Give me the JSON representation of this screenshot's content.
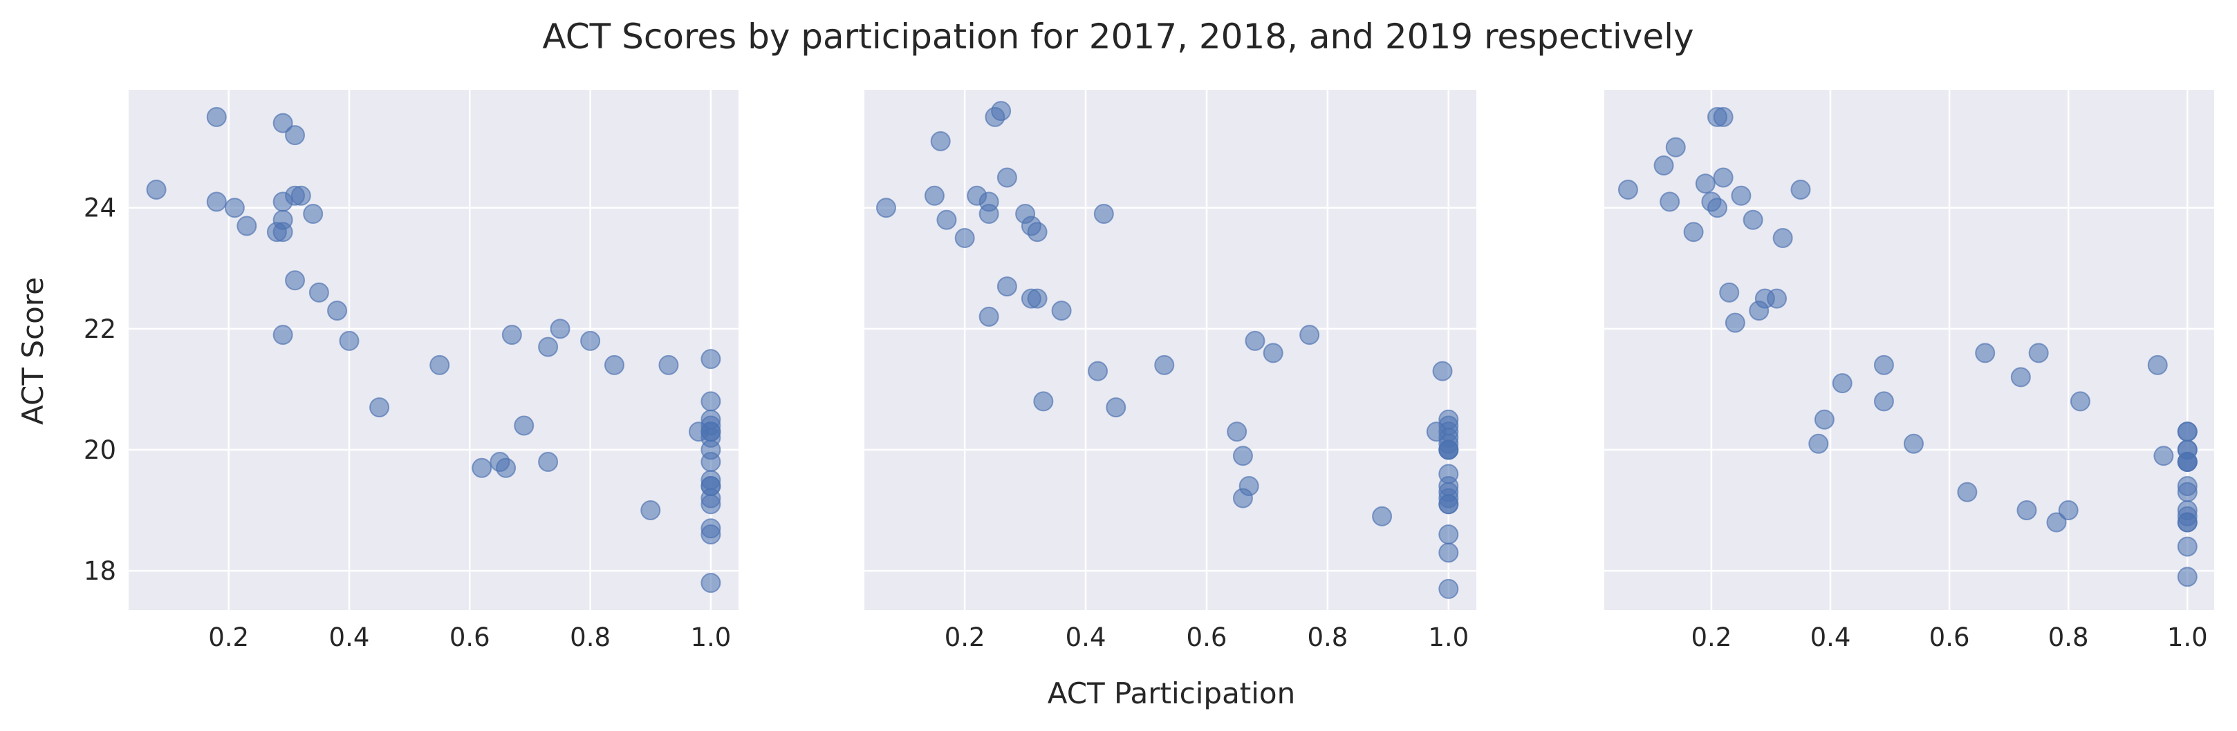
{
  "chart_data": {
    "type": "scatter",
    "title": "ACT Scores by participation for 2017, 2018, and 2019 respectively",
    "xlabel": "ACT Participation",
    "ylabel": "ACT Score",
    "marker_color": "#4c72b0",
    "background_color": "#eaeaf2",
    "grid": true,
    "sharey": true,
    "ylim": [
      17.35,
      25.95
    ],
    "yticks": [
      18,
      20,
      22,
      24
    ],
    "panels": [
      {
        "xlim": [
          0.034,
          1.046
        ],
        "xticks": [
          0.2,
          0.4,
          0.6,
          0.8,
          1.0
        ],
        "xticklabels": [
          "0.2",
          "0.4",
          "0.6",
          "0.8",
          "1.0"
        ],
        "points": [
          [
            0.08,
            24.3
          ],
          [
            0.18,
            25.5
          ],
          [
            0.18,
            24.1
          ],
          [
            0.21,
            24.0
          ],
          [
            0.23,
            23.7
          ],
          [
            0.28,
            23.6
          ],
          [
            0.29,
            25.4
          ],
          [
            0.29,
            24.1
          ],
          [
            0.29,
            23.8
          ],
          [
            0.29,
            23.6
          ],
          [
            0.29,
            21.9
          ],
          [
            0.31,
            25.2
          ],
          [
            0.31,
            24.2
          ],
          [
            0.32,
            24.2
          ],
          [
            0.34,
            23.9
          ],
          [
            0.31,
            22.8
          ],
          [
            0.35,
            22.6
          ],
          [
            0.38,
            22.3
          ],
          [
            0.4,
            21.8
          ],
          [
            0.45,
            20.7
          ],
          [
            0.55,
            21.4
          ],
          [
            0.62,
            19.7
          ],
          [
            0.65,
            19.8
          ],
          [
            0.66,
            19.7
          ],
          [
            0.67,
            21.9
          ],
          [
            0.69,
            20.4
          ],
          [
            0.73,
            21.7
          ],
          [
            0.73,
            19.8
          ],
          [
            0.75,
            22.0
          ],
          [
            0.8,
            21.8
          ],
          [
            0.84,
            21.4
          ],
          [
            0.9,
            19.0
          ],
          [
            0.93,
            21.4
          ],
          [
            0.98,
            20.3
          ],
          [
            1.0,
            21.5
          ],
          [
            1.0,
            20.8
          ],
          [
            1.0,
            20.5
          ],
          [
            1.0,
            20.4
          ],
          [
            1.0,
            20.3
          ],
          [
            1.0,
            20.2
          ],
          [
            1.0,
            20.0
          ],
          [
            1.0,
            19.8
          ],
          [
            1.0,
            19.5
          ],
          [
            1.0,
            19.4
          ],
          [
            1.0,
            19.4
          ],
          [
            1.0,
            19.2
          ],
          [
            1.0,
            19.1
          ],
          [
            1.0,
            18.7
          ],
          [
            1.0,
            18.6
          ],
          [
            1.0,
            17.8
          ],
          [
            1.0,
            20.3
          ]
        ]
      },
      {
        "xlim": [
          0.034,
          1.046
        ],
        "xticks": [
          0.2,
          0.4,
          0.6,
          0.8,
          1.0
        ],
        "xticklabels": [
          "0.2",
          "0.4",
          "0.6",
          "0.8",
          "1.0"
        ],
        "points": [
          [
            0.07,
            24.0
          ],
          [
            0.15,
            24.2
          ],
          [
            0.16,
            25.1
          ],
          [
            0.17,
            23.8
          ],
          [
            0.2,
            23.5
          ],
          [
            0.22,
            24.2
          ],
          [
            0.24,
            24.1
          ],
          [
            0.24,
            23.9
          ],
          [
            0.24,
            22.2
          ],
          [
            0.25,
            25.5
          ],
          [
            0.26,
            25.6
          ],
          [
            0.27,
            24.5
          ],
          [
            0.27,
            22.7
          ],
          [
            0.3,
            23.9
          ],
          [
            0.31,
            23.7
          ],
          [
            0.31,
            22.5
          ],
          [
            0.32,
            23.6
          ],
          [
            0.32,
            22.5
          ],
          [
            0.33,
            20.8
          ],
          [
            0.36,
            22.3
          ],
          [
            0.42,
            21.3
          ],
          [
            0.43,
            23.9
          ],
          [
            0.45,
            20.7
          ],
          [
            0.53,
            21.4
          ],
          [
            0.65,
            20.3
          ],
          [
            0.66,
            19.9
          ],
          [
            0.66,
            19.2
          ],
          [
            0.67,
            19.4
          ],
          [
            0.68,
            21.8
          ],
          [
            0.71,
            21.6
          ],
          [
            0.77,
            21.9
          ],
          [
            0.89,
            18.9
          ],
          [
            0.98,
            20.3
          ],
          [
            0.99,
            21.3
          ],
          [
            1.0,
            20.5
          ],
          [
            1.0,
            20.4
          ],
          [
            1.0,
            20.3
          ],
          [
            1.0,
            20.2
          ],
          [
            1.0,
            20.1
          ],
          [
            1.0,
            20.0
          ],
          [
            1.0,
            20.0
          ],
          [
            1.0,
            19.6
          ],
          [
            1.0,
            19.4
          ],
          [
            1.0,
            19.3
          ],
          [
            1.0,
            19.2
          ],
          [
            1.0,
            19.1
          ],
          [
            1.0,
            19.1
          ],
          [
            1.0,
            18.6
          ],
          [
            1.0,
            18.3
          ],
          [
            1.0,
            17.7
          ],
          [
            1.0,
            20.0
          ]
        ]
      },
      {
        "xlim": [
          0.02,
          1.045
        ],
        "xticks": [
          0.2,
          0.4,
          0.6,
          0.8,
          1.0
        ],
        "xticklabels": [
          "0.2",
          "0.4",
          "0.6",
          "0.8",
          "1.0"
        ],
        "points": [
          [
            0.06,
            24.3
          ],
          [
            0.12,
            24.7
          ],
          [
            0.13,
            24.1
          ],
          [
            0.14,
            25.0
          ],
          [
            0.17,
            23.6
          ],
          [
            0.19,
            24.4
          ],
          [
            0.2,
            24.1
          ],
          [
            0.21,
            24.0
          ],
          [
            0.21,
            25.5
          ],
          [
            0.22,
            25.5
          ],
          [
            0.22,
            24.5
          ],
          [
            0.23,
            22.6
          ],
          [
            0.24,
            22.1
          ],
          [
            0.25,
            24.2
          ],
          [
            0.27,
            23.8
          ],
          [
            0.28,
            22.3
          ],
          [
            0.29,
            22.5
          ],
          [
            0.31,
            22.5
          ],
          [
            0.32,
            23.5
          ],
          [
            0.35,
            24.3
          ],
          [
            0.38,
            20.1
          ],
          [
            0.39,
            20.5
          ],
          [
            0.42,
            21.1
          ],
          [
            0.49,
            21.4
          ],
          [
            0.49,
            20.8
          ],
          [
            0.54,
            20.1
          ],
          [
            0.63,
            19.3
          ],
          [
            0.66,
            21.6
          ],
          [
            0.72,
            21.2
          ],
          [
            0.73,
            19.0
          ],
          [
            0.75,
            21.6
          ],
          [
            0.78,
            18.8
          ],
          [
            0.8,
            19.0
          ],
          [
            0.82,
            20.8
          ],
          [
            0.95,
            21.4
          ],
          [
            0.96,
            19.9
          ],
          [
            1.0,
            20.3
          ],
          [
            1.0,
            20.3
          ],
          [
            1.0,
            20.0
          ],
          [
            1.0,
            19.8
          ],
          [
            1.0,
            19.8
          ],
          [
            1.0,
            19.4
          ],
          [
            1.0,
            19.3
          ],
          [
            1.0,
            19.0
          ],
          [
            1.0,
            18.9
          ],
          [
            1.0,
            18.8
          ],
          [
            1.0,
            18.8
          ],
          [
            1.0,
            18.4
          ],
          [
            1.0,
            17.9
          ],
          [
            1.0,
            20.0
          ],
          [
            1.0,
            19.8
          ]
        ]
      }
    ]
  }
}
